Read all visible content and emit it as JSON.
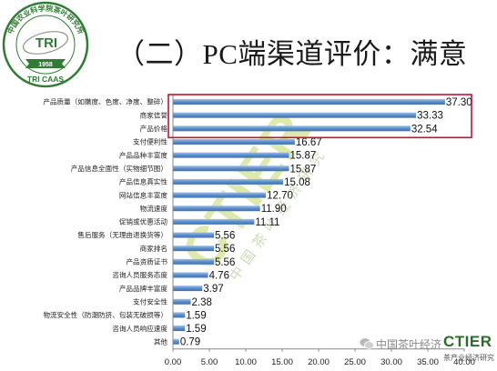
{
  "logo": {
    "arc_text": "中国农业科学院茶叶研究所",
    "center_text": "TRI",
    "year": "1958",
    "bottom_text": "TRI CAAS",
    "color": "#2e7d32"
  },
  "title": "（二）PC端渠道评价：满意",
  "chart_data": {
    "type": "bar",
    "orientation": "horizontal",
    "categories": [
      "产品质量（如嫩度、色度、净度、整碎）",
      "商家信誉",
      "产品价格",
      "支付便利性",
      "产品品种丰富度",
      "产品信息全面性（实物细节图）",
      "产品信息真实性",
      "网站信息丰富度",
      "物流速度",
      "促销或优惠活动",
      "售后服务（无理由退换货等）",
      "商家排名",
      "产品资质证书",
      "咨询人员服务态度",
      "产品品牌丰富度",
      "支付安全性",
      "物流安全性（防潮防挤、包装无破损等）",
      "咨询人员响应速度",
      "其他"
    ],
    "values": [
      37.3,
      33.33,
      32.54,
      16.67,
      15.87,
      15.87,
      15.08,
      12.7,
      11.9,
      11.11,
      5.56,
      5.56,
      5.56,
      4.76,
      3.97,
      2.38,
      1.59,
      1.59,
      0.79
    ],
    "value_labels": [
      "37.30",
      "33.33",
      "32.54",
      "16.67",
      "15.87",
      "15.87",
      "15.08",
      "12.70",
      "11.90",
      "11.11",
      "5.56",
      "5.56",
      "5.56",
      "4.76",
      "3.97",
      "2.38",
      "1.59",
      "1.59",
      "0.79"
    ],
    "xticks": [
      0,
      5,
      10,
      15,
      20,
      25,
      30,
      35,
      40
    ],
    "xtick_labels": [
      "0.00",
      "5.00",
      "10.00",
      "15.00",
      "20.00",
      "25.00",
      "30.00",
      "35.00",
      "40.00"
    ],
    "xlim": [
      0,
      40
    ],
    "grid": false,
    "legend": "none",
    "bar_color": "#5b8dcb",
    "highlight": {
      "color": "#c8102e",
      "from_row": 0,
      "to_row": 2
    }
  },
  "watermark": {
    "text": "CTIER",
    "subtitle": "中国茶叶经济研究"
  },
  "footer": {
    "wechat_label": "中国茶叶经济",
    "brand": "CTIER",
    "brand_sub": "茶产业经济研究"
  }
}
